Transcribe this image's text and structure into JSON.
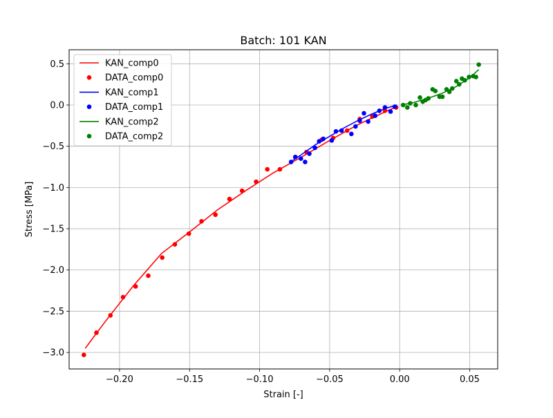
{
  "chart_data": {
    "type": "scatter",
    "title": "Batch: 101 KAN",
    "xlabel": "Strain [-]",
    "ylabel": "Stress [MPa]",
    "xlim": [
      -0.236,
      0.07
    ],
    "ylim": [
      -3.2,
      0.67
    ],
    "grid": true,
    "legend_position": "top-left",
    "xticks": [
      -0.2,
      -0.15,
      -0.1,
      -0.05,
      0.0,
      0.05
    ],
    "xtick_labels": [
      "−0.20",
      "−0.15",
      "−0.10",
      "−0.05",
      "0.00",
      "0.05"
    ],
    "yticks": [
      0.5,
      0.0,
      -0.5,
      -1.0,
      -1.5,
      -2.0,
      -2.5,
      -3.0
    ],
    "ytick_labels": [
      "0.5",
      "0.0",
      "−0.5",
      "−1.0",
      "−1.5",
      "−2.0",
      "−2.5",
      "−3.0"
    ],
    "series": [
      {
        "name": "KAN_comp0",
        "kind": "line",
        "color": "#ff0000",
        "x": [
          -0.2245,
          -0.21,
          -0.19,
          -0.17,
          -0.15,
          -0.13,
          -0.11,
          -0.09,
          -0.07,
          -0.05,
          -0.03,
          -0.01,
          -0.002
        ],
        "y": [
          -2.95,
          -2.62,
          -2.19,
          -1.8,
          -1.54,
          -1.27,
          -1.04,
          -0.82,
          -0.63,
          -0.43,
          -0.24,
          -0.08,
          -0.02
        ]
      },
      {
        "name": "DATA_comp0",
        "kind": "scatter",
        "color": "#ff0000",
        "x": [
          -0.2255,
          -0.2165,
          -0.2065,
          -0.1975,
          -0.1885,
          -0.1795,
          -0.1695,
          -0.1605,
          -0.1505,
          -0.1415,
          -0.1315,
          -0.1215,
          -0.1125,
          -0.1025,
          -0.0945,
          -0.0855,
          -0.0745,
          -0.0665,
          -0.0555,
          -0.0475,
          -0.0375,
          -0.0285,
          -0.0195,
          -0.0105,
          -0.0025
        ],
        "y": [
          -3.03,
          -2.76,
          -2.55,
          -2.33,
          -2.2,
          -2.07,
          -1.85,
          -1.69,
          -1.56,
          -1.41,
          -1.33,
          -1.14,
          -1.04,
          -0.93,
          -0.78,
          -0.78,
          -0.63,
          -0.57,
          -0.42,
          -0.4,
          -0.31,
          -0.17,
          -0.14,
          -0.07,
          -0.03
        ]
      },
      {
        "name": "KAN_comp1",
        "kind": "line",
        "color": "#0000ff",
        "x": [
          -0.077,
          -0.07,
          -0.06,
          -0.05,
          -0.04,
          -0.03,
          -0.02,
          -0.01,
          -0.002
        ],
        "y": [
          -0.68,
          -0.6,
          -0.48,
          -0.38,
          -0.28,
          -0.19,
          -0.11,
          -0.04,
          0.0
        ]
      },
      {
        "name": "DATA_comp1",
        "kind": "scatter",
        "color": "#0000ff",
        "x": [
          -0.0775,
          -0.0745,
          -0.0705,
          -0.0675,
          -0.0645,
          -0.0605,
          -0.0575,
          -0.0545,
          -0.0485,
          -0.0455,
          -0.0415,
          -0.0345,
          -0.0315,
          -0.0285,
          -0.0255,
          -0.0225,
          -0.0175,
          -0.0145,
          -0.0105,
          -0.0065,
          -0.0035
        ],
        "y": [
          -0.69,
          -0.63,
          -0.65,
          -0.69,
          -0.59,
          -0.52,
          -0.44,
          -0.41,
          -0.43,
          -0.32,
          -0.31,
          -0.35,
          -0.26,
          -0.19,
          -0.1,
          -0.2,
          -0.13,
          -0.07,
          -0.03,
          -0.08,
          -0.02
        ]
      },
      {
        "name": "KAN_comp2",
        "kind": "line",
        "color": "#008000",
        "x": [
          0.001,
          0.01,
          0.02,
          0.03,
          0.04,
          0.05,
          0.0565
        ],
        "y": [
          0.0,
          0.03,
          0.08,
          0.14,
          0.22,
          0.33,
          0.43
        ]
      },
      {
        "name": "DATA_comp2",
        "kind": "scatter",
        "color": "#008000",
        "x": [
          0.0025,
          0.0055,
          0.0075,
          0.0115,
          0.0145,
          0.0165,
          0.0185,
          0.0205,
          0.0235,
          0.0255,
          0.0285,
          0.0305,
          0.0335,
          0.0355,
          0.0375,
          0.0405,
          0.0425,
          0.0445,
          0.0465,
          0.0495,
          0.0525,
          0.0545,
          0.0565
        ],
        "y": [
          0.0,
          -0.03,
          0.02,
          0.0,
          0.09,
          0.04,
          0.06,
          0.08,
          0.19,
          0.17,
          0.1,
          0.1,
          0.19,
          0.16,
          0.2,
          0.29,
          0.25,
          0.32,
          0.3,
          0.34,
          0.35,
          0.34,
          0.49
        ]
      }
    ]
  }
}
